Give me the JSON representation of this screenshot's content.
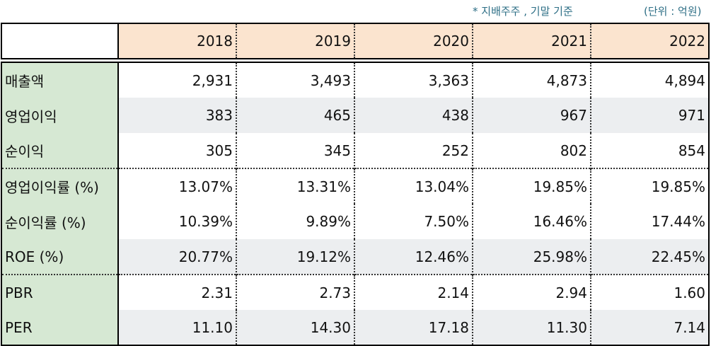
{
  "notes": {
    "basis": "* 지배주주 , 기말 기준",
    "unit": "(단위 : 억원)"
  },
  "table": {
    "corner": "",
    "years": [
      "2018",
      "2019",
      "2020",
      "2021",
      "2022"
    ],
    "rows": [
      {
        "label": "매출액",
        "values": [
          "2,931",
          "3,493",
          "3,363",
          "4,873",
          "4,894"
        ]
      },
      {
        "label": "영업이익",
        "values": [
          "383",
          "465",
          "438",
          "967",
          "971"
        ]
      },
      {
        "label": "순이익",
        "values": [
          "305",
          "345",
          "252",
          "802",
          "854"
        ]
      },
      {
        "label": "영업이익률 (%)",
        "values": [
          "13.07%",
          "13.31%",
          "13.04%",
          "19.85%",
          "19.85%"
        ]
      },
      {
        "label": "순이익률 (%)",
        "values": [
          "10.39%",
          "9.89%",
          "7.50%",
          "16.46%",
          "17.44%"
        ]
      },
      {
        "label": "ROE (%)",
        "values": [
          "20.77%",
          "19.12%",
          "12.46%",
          "25.98%",
          "22.45%"
        ]
      },
      {
        "label": "PBR",
        "values": [
          "2.31",
          "2.73",
          "2.14",
          "2.94",
          "1.60"
        ]
      },
      {
        "label": "PER",
        "values": [
          "11.10",
          "14.30",
          "17.18",
          "11.30",
          "7.14"
        ]
      }
    ]
  },
  "colors": {
    "header_bg": "#fbe4cf",
    "label_bg": "#d6e8d3",
    "stripe_bg": "#eceef0",
    "note_text": "#2e6f86"
  }
}
